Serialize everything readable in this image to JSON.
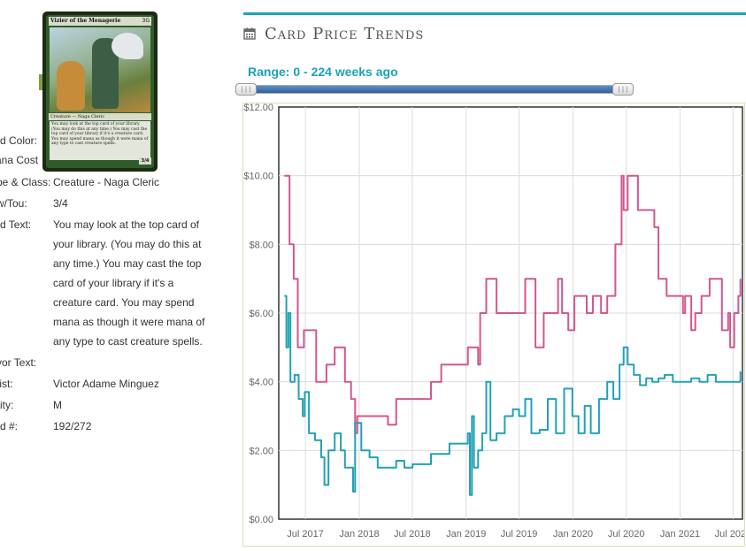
{
  "card": {
    "name": "Vizier of the Menagerie",
    "mana_cost": "3G",
    "type_line": "Creature — Naga Cleric",
    "rules_text": "You may look at the top card of your library. (You may do this at any time.) You may cast the top card of your library if it's a creature card. You may spend mana as though it were mana of any type to cast creature spells.",
    "pt": "3/4"
  },
  "details": [
    {
      "label": "rd Color:",
      "value": ""
    },
    {
      "label": "ana Cost",
      "value": ""
    },
    {
      "label": "pe & Class:",
      "value": "Creature - Naga Cleric"
    },
    {
      "label": "w/Tou:",
      "value": "3/4"
    },
    {
      "label": "rd Text:",
      "value": "You may look at the top card of your library. (You may do this at any time.) You may cast the top card of your library if it's a creature card. You may spend mana as though it were mana of any type to cast creature spells."
    },
    {
      "label": "vor Text:",
      "value": ""
    },
    {
      "label": "tist:",
      "value": "Victor Adame Minguez"
    },
    {
      "label": "rity:",
      "value": "M"
    },
    {
      "label": "rd #:",
      "value": "192/272"
    }
  ],
  "section": {
    "title": "Card Price Trends",
    "icon": "calendar-icon"
  },
  "range": {
    "label": "Range: 0 - 224 weeks ago",
    "min_weeks": 0,
    "max_weeks": 224,
    "handle_glyph": "|||"
  },
  "colors": {
    "accent": "#1aa3b8",
    "foil_series": "#d2578f",
    "normal_series": "#21a2b6",
    "slider_fill": "#3c6eab"
  },
  "chart_data": {
    "type": "line",
    "ylim": [
      0,
      12
    ],
    "y_ticks": [
      "$0.00",
      "$2.00",
      "$4.00",
      "$6.00",
      "$8.00",
      "$10.00",
      "$12.00"
    ],
    "x_ticks": [
      "Jul 2017",
      "Jan 2018",
      "Jul 2018",
      "Jan 2019",
      "Jul 2019",
      "Jan 2020",
      "Jul 2020",
      "Jan 2021",
      "Jul 2021"
    ],
    "grid": true,
    "series": [
      {
        "color": "#d2578f",
        "points": [
          [
            "2017-04-20",
            10.0
          ],
          [
            "2017-05-01",
            10.0
          ],
          [
            "2017-05-08",
            8.0
          ],
          [
            "2017-05-22",
            7.0
          ],
          [
            "2017-06-05",
            5.0
          ],
          [
            "2017-06-26",
            5.5
          ],
          [
            "2017-07-17",
            5.5
          ],
          [
            "2017-08-07",
            4.0
          ],
          [
            "2017-09-11",
            4.5
          ],
          [
            "2017-10-09",
            5.0
          ],
          [
            "2017-11-13",
            4.0
          ],
          [
            "2017-12-04",
            3.5
          ],
          [
            "2017-12-18",
            2.5
          ],
          [
            "2017-12-25",
            3.0
          ],
          [
            "2018-01-08",
            3.0
          ],
          [
            "2018-03-05",
            3.0
          ],
          [
            "2018-04-09",
            2.75
          ],
          [
            "2018-05-07",
            3.5
          ],
          [
            "2018-07-02",
            3.5
          ],
          [
            "2018-09-03",
            4.0
          ],
          [
            "2018-10-08",
            4.5
          ],
          [
            "2018-12-03",
            4.5
          ],
          [
            "2019-01-07",
            5.0
          ],
          [
            "2019-01-28",
            5.0
          ],
          [
            "2019-02-11",
            4.5
          ],
          [
            "2019-02-18",
            6.0
          ],
          [
            "2019-03-04",
            6.0
          ],
          [
            "2019-03-11",
            7.0
          ],
          [
            "2019-04-01",
            7.0
          ],
          [
            "2019-04-15",
            6.0
          ],
          [
            "2019-07-08",
            6.0
          ],
          [
            "2019-07-22",
            7.0
          ],
          [
            "2019-08-12",
            7.0
          ],
          [
            "2019-08-26",
            5.0
          ],
          [
            "2019-09-09",
            5.0
          ],
          [
            "2019-09-23",
            6.0
          ],
          [
            "2019-10-28",
            6.0
          ],
          [
            "2019-11-11",
            7.0
          ],
          [
            "2019-11-25",
            6.0
          ],
          [
            "2019-12-16",
            5.5
          ],
          [
            "2020-01-06",
            6.5
          ],
          [
            "2020-02-03",
            6.5
          ],
          [
            "2020-02-17",
            6.0
          ],
          [
            "2020-03-09",
            6.5
          ],
          [
            "2020-04-06",
            6.0
          ],
          [
            "2020-04-27",
            6.5
          ],
          [
            "2020-05-25",
            8.0
          ],
          [
            "2020-06-15",
            10.0
          ],
          [
            "2020-06-22",
            9.0
          ],
          [
            "2020-07-06",
            10.0
          ],
          [
            "2020-08-03",
            10.0
          ],
          [
            "2020-08-10",
            9.0
          ],
          [
            "2020-09-21",
            9.0
          ],
          [
            "2020-10-05",
            8.5
          ],
          [
            "2020-10-19",
            7.0
          ],
          [
            "2020-11-16",
            6.5
          ],
          [
            "2021-01-04",
            6.5
          ],
          [
            "2021-01-11",
            6.0
          ],
          [
            "2021-01-18",
            6.5
          ],
          [
            "2021-02-08",
            5.5
          ],
          [
            "2021-02-22",
            6.0
          ],
          [
            "2021-03-15",
            6.5
          ],
          [
            "2021-04-12",
            7.0
          ],
          [
            "2021-05-17",
            7.0
          ],
          [
            "2021-05-24",
            5.5
          ],
          [
            "2021-06-14",
            6.0
          ],
          [
            "2021-06-21",
            5.0
          ],
          [
            "2021-07-05",
            6.0
          ],
          [
            "2021-07-19",
            6.5
          ],
          [
            "2021-07-26",
            7.0
          ]
        ]
      },
      {
        "color": "#21a2b6",
        "points": [
          [
            "2017-04-20",
            6.5
          ],
          [
            "2017-04-27",
            5.0
          ],
          [
            "2017-05-04",
            6.0
          ],
          [
            "2017-05-11",
            4.0
          ],
          [
            "2017-05-25",
            4.2
          ],
          [
            "2017-06-08",
            3.5
          ],
          [
            "2017-06-22",
            3.0
          ],
          [
            "2017-06-29",
            3.7
          ],
          [
            "2017-07-13",
            2.5
          ],
          [
            "2017-08-03",
            2.3
          ],
          [
            "2017-08-24",
            1.8
          ],
          [
            "2017-09-04",
            1.0
          ],
          [
            "2017-09-18",
            2.0
          ],
          [
            "2017-10-09",
            2.5
          ],
          [
            "2017-10-30",
            2.0
          ],
          [
            "2017-11-13",
            1.5
          ],
          [
            "2017-12-11",
            0.8
          ],
          [
            "2017-12-18",
            2.8
          ],
          [
            "2018-01-08",
            2.0
          ],
          [
            "2018-02-05",
            1.8
          ],
          [
            "2018-03-05",
            1.5
          ],
          [
            "2018-04-09",
            1.5
          ],
          [
            "2018-05-07",
            1.7
          ],
          [
            "2018-06-04",
            1.5
          ],
          [
            "2018-07-02",
            1.6
          ],
          [
            "2018-09-03",
            1.9
          ],
          [
            "2018-11-05",
            2.2
          ],
          [
            "2019-01-07",
            2.5
          ],
          [
            "2019-01-14",
            0.7
          ],
          [
            "2019-01-21",
            3.0
          ],
          [
            "2019-01-28",
            1.5
          ],
          [
            "2019-02-11",
            2.0
          ],
          [
            "2019-02-25",
            2.5
          ],
          [
            "2019-03-11",
            4.0
          ],
          [
            "2019-03-25",
            2.3
          ],
          [
            "2019-04-15",
            2.5
          ],
          [
            "2019-05-13",
            3.0
          ],
          [
            "2019-06-10",
            3.2
          ],
          [
            "2019-07-01",
            3.0
          ],
          [
            "2019-07-22",
            3.5
          ],
          [
            "2019-08-12",
            2.5
          ],
          [
            "2019-09-09",
            2.6
          ],
          [
            "2019-10-07",
            3.5
          ],
          [
            "2019-11-04",
            2.5
          ],
          [
            "2019-12-02",
            3.8
          ],
          [
            "2019-12-30",
            3.0
          ],
          [
            "2020-01-20",
            2.5
          ],
          [
            "2020-02-10",
            3.3
          ],
          [
            "2020-03-02",
            2.5
          ],
          [
            "2020-03-30",
            3.5
          ],
          [
            "2020-04-27",
            4.0
          ],
          [
            "2020-05-18",
            3.5
          ],
          [
            "2020-06-08",
            4.5
          ],
          [
            "2020-06-22",
            5.0
          ],
          [
            "2020-07-06",
            4.5
          ],
          [
            "2020-07-27",
            4.2
          ],
          [
            "2020-08-17",
            3.9
          ],
          [
            "2020-09-07",
            4.1
          ],
          [
            "2020-09-28",
            4.0
          ],
          [
            "2020-10-19",
            4.1
          ],
          [
            "2020-11-09",
            4.2
          ],
          [
            "2020-12-07",
            4.0
          ],
          [
            "2021-01-11",
            4.0
          ],
          [
            "2021-02-08",
            4.1
          ],
          [
            "2021-03-08",
            4.0
          ],
          [
            "2021-04-05",
            4.2
          ],
          [
            "2021-05-03",
            4.0
          ],
          [
            "2021-06-07",
            4.0
          ],
          [
            "2021-07-05",
            4.0
          ],
          [
            "2021-07-19",
            4.0
          ],
          [
            "2021-07-26",
            4.3
          ]
        ]
      }
    ]
  }
}
